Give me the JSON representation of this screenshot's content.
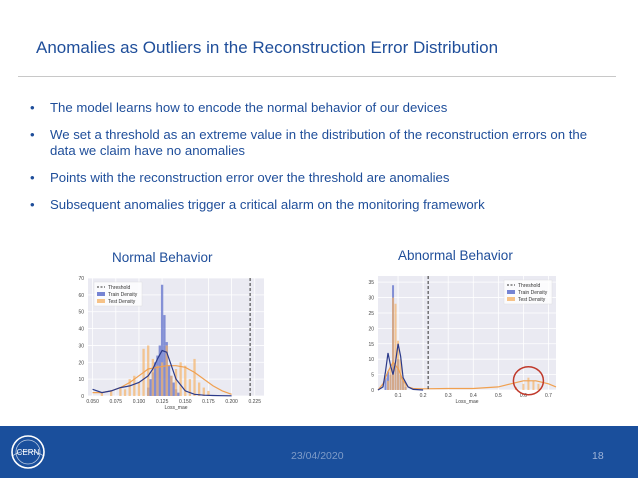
{
  "slide": {
    "title": "Anomalies as Outliers in the Reconstruction Error Distribution",
    "bullets": [
      "The model learns how to encode the normal behavior of our devices",
      "We set a threshold as an extreme value in the distribution of the reconstruction errors on the data we claim have no anomalies",
      "Points with the reconstruction error over the threshold are anomalies",
      "Subsequent anomalies trigger a critical alarm on the monitoring framework"
    ],
    "bullet_symbol": "•",
    "date": "23/04/2020",
    "page_number": "18",
    "logo_text": "CERN"
  },
  "colors": {
    "title": "#1f4e9a",
    "footer": "#1a4f9c",
    "train": "#5566c8",
    "test": "#f5b46a",
    "threshold": "#333333",
    "highlight": "#c0392b"
  },
  "chart_data": [
    {
      "type": "bar",
      "title": "Normal Behavior",
      "xlabel": "Loss_mae",
      "xlim": [
        0.045,
        0.235
      ],
      "ylim": [
        0,
        70
      ],
      "xticks": [
        "0.050",
        "0.075",
        "0.100",
        "0.125",
        "0.150",
        "0.175",
        "0.200",
        "0.225"
      ],
      "yticks": [
        "0",
        "10",
        "20",
        "30",
        "40",
        "50",
        "60",
        "70"
      ],
      "grid": true,
      "legend": [
        "Threshold",
        "Train Density",
        "Test Density"
      ],
      "legend_position": "top-left",
      "threshold": 0.22,
      "series": [
        {
          "name": "Train Density",
          "bin_width": 0.0025,
          "x": [
            0.11,
            0.1125,
            0.115,
            0.1175,
            0.12,
            0.1225,
            0.125,
            0.1275,
            0.13,
            0.1325,
            0.135,
            0.1375,
            0.14,
            0.1425
          ],
          "values": [
            5,
            10,
            14,
            20,
            24,
            30,
            66,
            48,
            32,
            18,
            12,
            8,
            4,
            2
          ]
        },
        {
          "name": "Test Density",
          "bin_width": 0.0025,
          "x": [
            0.06,
            0.07,
            0.08,
            0.085,
            0.09,
            0.095,
            0.1,
            0.105,
            0.11,
            0.115,
            0.12,
            0.125,
            0.13,
            0.135,
            0.14,
            0.145,
            0.15,
            0.155,
            0.16,
            0.165,
            0.17,
            0.175
          ],
          "values": [
            2,
            3,
            5,
            4,
            10,
            12,
            8,
            28,
            30,
            22,
            18,
            20,
            30,
            12,
            16,
            20,
            18,
            10,
            22,
            8,
            5,
            3
          ]
        }
      ],
      "train_kde": {
        "x": [
          0.05,
          0.06,
          0.07,
          0.08,
          0.09,
          0.1,
          0.11,
          0.115,
          0.12,
          0.125,
          0.13,
          0.135,
          0.14,
          0.15,
          0.16,
          0.17,
          0.18,
          0.19,
          0.2
        ],
        "y": [
          4,
          2,
          3,
          5,
          6,
          8,
          12,
          16,
          22,
          27,
          26,
          18,
          10,
          3,
          1,
          0.5,
          0.3,
          0.2,
          0.1
        ]
      },
      "test_kde": {
        "x": [
          0.05,
          0.06,
          0.07,
          0.08,
          0.09,
          0.1,
          0.11,
          0.12,
          0.13,
          0.14,
          0.15,
          0.16,
          0.17,
          0.18,
          0.19,
          0.2
        ],
        "y": [
          2,
          2,
          3,
          5,
          8,
          12,
          16,
          17,
          18,
          18,
          17,
          14,
          10,
          6,
          3,
          1
        ]
      }
    },
    {
      "type": "bar",
      "title": "Abnormal Behavior",
      "xlabel": "Loss_mae",
      "xlim": [
        0.02,
        0.73
      ],
      "ylim": [
        0,
        37
      ],
      "xticks": [
        "0.1",
        "0.2",
        "0.3",
        "0.4",
        "0.5",
        "0.6",
        "0.7"
      ],
      "yticks": [
        "0",
        "5",
        "10",
        "15",
        "20",
        "25",
        "30",
        "35"
      ],
      "grid": true,
      "legend": [
        "Threshold",
        "Train Density",
        "Test Density"
      ],
      "legend_position": "top-right",
      "threshold": 0.22,
      "highlight_region": {
        "x": 0.62,
        "y": 3
      },
      "series": [
        {
          "name": "Train Density",
          "bin_width": 0.008,
          "x": [
            0.05,
            0.06,
            0.07,
            0.08,
            0.09,
            0.1,
            0.11,
            0.12,
            0.13
          ],
          "values": [
            4,
            6,
            5,
            34,
            8,
            10,
            5,
            3,
            1
          ]
        },
        {
          "name": "Test Density",
          "bin_width": 0.008,
          "x": [
            0.06,
            0.07,
            0.08,
            0.09,
            0.1,
            0.11,
            0.12,
            0.13,
            0.57,
            0.6,
            0.62,
            0.64,
            0.66
          ],
          "values": [
            3,
            8,
            30,
            28,
            16,
            10,
            4,
            2,
            1,
            2,
            4,
            3,
            2
          ]
        }
      ],
      "train_kde": {
        "x": [
          0.02,
          0.04,
          0.05,
          0.06,
          0.07,
          0.08,
          0.09,
          0.1,
          0.11,
          0.12,
          0.14,
          0.16,
          0.2
        ],
        "y": [
          0,
          1,
          6,
          12,
          8,
          5,
          9,
          15,
          11,
          4,
          1,
          0.2,
          0
        ]
      },
      "test_kde": {
        "x": [
          0.02,
          0.04,
          0.06,
          0.08,
          0.1,
          0.12,
          0.14,
          0.16,
          0.2,
          0.3,
          0.4,
          0.5,
          0.55,
          0.6,
          0.65,
          0.7,
          0.73
        ],
        "y": [
          0,
          2,
          6,
          9,
          7,
          3,
          1,
          0.5,
          0.4,
          0.5,
          0.5,
          1,
          2,
          3,
          3,
          2,
          1
        ]
      }
    }
  ]
}
